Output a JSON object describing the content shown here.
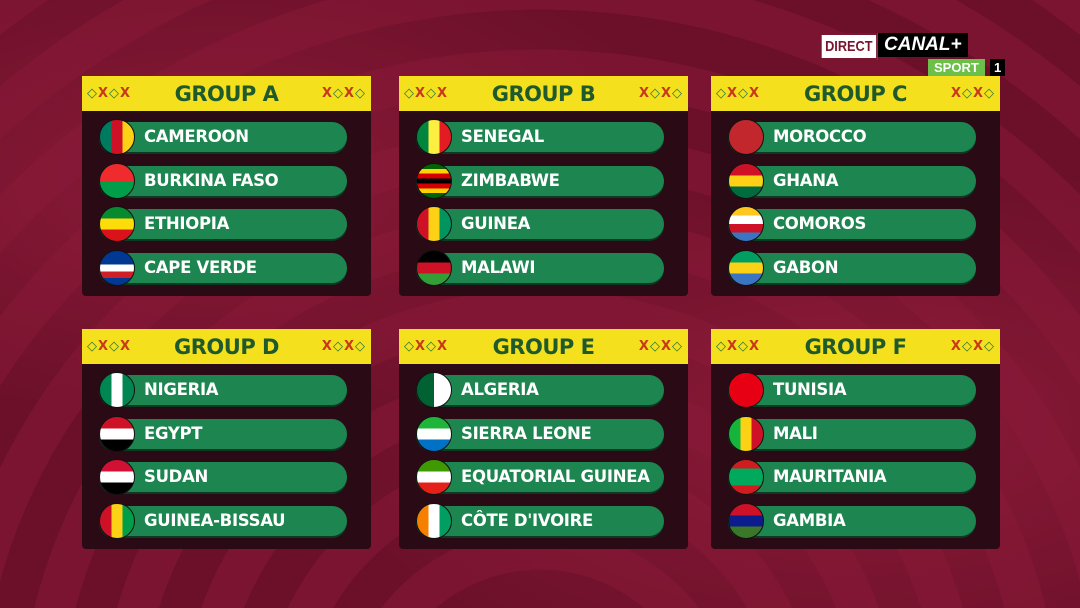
{
  "broadcaster": {
    "live_label": "DIRECT",
    "channel": "CANAL+",
    "sub_channel": "SPORT",
    "channel_number": "1"
  },
  "colors": {
    "header_bg": "#f4e01c",
    "header_text": "#1f5a2c",
    "pill": "#1d8550",
    "card": "#2a0a14",
    "background": "#7a1430"
  },
  "groups": [
    {
      "title": "GROUP A",
      "teams": [
        {
          "name": "CAMEROON",
          "flag": {
            "dir": "v",
            "colors": [
              "#007a5e",
              "#ce1126",
              "#fcd116"
            ]
          }
        },
        {
          "name": "BURKINA FASO",
          "flag": {
            "dir": "h",
            "colors": [
              "#ef2b2d",
              "#009e49"
            ]
          }
        },
        {
          "name": "ETHIOPIA",
          "flag": {
            "dir": "h",
            "colors": [
              "#078930",
              "#fcdd09",
              "#da121a"
            ]
          }
        },
        {
          "name": "CAPE VERDE",
          "flag": {
            "dir": "h",
            "colors": [
              "#003893",
              "#003893",
              "#ffffff",
              "#cf2027",
              "#003893"
            ]
          }
        }
      ]
    },
    {
      "title": "GROUP B",
      "teams": [
        {
          "name": "SENEGAL",
          "flag": {
            "dir": "v",
            "colors": [
              "#00853f",
              "#fdef42",
              "#e31b23"
            ]
          }
        },
        {
          "name": "ZIMBABWE",
          "flag": {
            "dir": "h",
            "colors": [
              "#006400",
              "#ffd200",
              "#d40000",
              "#000000",
              "#d40000",
              "#ffd200",
              "#006400"
            ]
          }
        },
        {
          "name": "GUINEA",
          "flag": {
            "dir": "v",
            "colors": [
              "#ce1126",
              "#fcd116",
              "#009460"
            ]
          }
        },
        {
          "name": "MALAWI",
          "flag": {
            "dir": "h",
            "colors": [
              "#000000",
              "#ce1126",
              "#339e35"
            ]
          }
        }
      ]
    },
    {
      "title": "GROUP C",
      "teams": [
        {
          "name": "MOROCCO",
          "flag": {
            "dir": "h",
            "colors": [
              "#c1272d"
            ]
          }
        },
        {
          "name": "GHANA",
          "flag": {
            "dir": "h",
            "colors": [
              "#ce1126",
              "#fcd116",
              "#006b3f"
            ]
          }
        },
        {
          "name": "COMOROS",
          "flag": {
            "dir": "h",
            "colors": [
              "#ffc61e",
              "#ffffff",
              "#ce1126",
              "#3a75c4"
            ]
          }
        },
        {
          "name": "GABON",
          "flag": {
            "dir": "h",
            "colors": [
              "#009e60",
              "#fcd116",
              "#3a75c4"
            ]
          }
        }
      ]
    },
    {
      "title": "GROUP D",
      "teams": [
        {
          "name": "NIGERIA",
          "flag": {
            "dir": "v",
            "colors": [
              "#008751",
              "#ffffff",
              "#008751"
            ]
          }
        },
        {
          "name": "EGYPT",
          "flag": {
            "dir": "h",
            "colors": [
              "#ce1126",
              "#ffffff",
              "#000000"
            ]
          }
        },
        {
          "name": "SUDAN",
          "flag": {
            "dir": "h",
            "colors": [
              "#d21034",
              "#ffffff",
              "#000000"
            ]
          }
        },
        {
          "name": "GUINEA-BISSAU",
          "flag": {
            "dir": "v",
            "colors": [
              "#ce1126",
              "#fcd116",
              "#009e49"
            ]
          }
        }
      ]
    },
    {
      "title": "GROUP E",
      "teams": [
        {
          "name": "ALGERIA",
          "flag": {
            "dir": "v",
            "colors": [
              "#006233",
              "#ffffff"
            ]
          }
        },
        {
          "name": "SIERRA LEONE",
          "flag": {
            "dir": "h",
            "colors": [
              "#1eb53a",
              "#ffffff",
              "#0072c6"
            ]
          }
        },
        {
          "name": "EQUATORIAL GUINEA",
          "flag": {
            "dir": "h",
            "colors": [
              "#3e9a00",
              "#ffffff",
              "#e32118"
            ]
          }
        },
        {
          "name": "CÔTE D'IVOIRE",
          "flag": {
            "dir": "v",
            "colors": [
              "#f77f00",
              "#ffffff",
              "#009e60"
            ]
          }
        }
      ]
    },
    {
      "title": "GROUP F",
      "teams": [
        {
          "name": "TUNISIA",
          "flag": {
            "dir": "h",
            "colors": [
              "#e70013"
            ]
          }
        },
        {
          "name": "MALI",
          "flag": {
            "dir": "v",
            "colors": [
              "#14b53a",
              "#fcd116",
              "#ce1126"
            ]
          }
        },
        {
          "name": "MAURITANIA",
          "flag": {
            "dir": "h",
            "colors": [
              "#d01c1f",
              "#00a95c",
              "#00a95c",
              "#d01c1f"
            ]
          }
        },
        {
          "name": "GAMBIA",
          "flag": {
            "dir": "h",
            "colors": [
              "#ce1126",
              "#0c1c8c",
              "#3a7728"
            ]
          }
        }
      ]
    }
  ]
}
